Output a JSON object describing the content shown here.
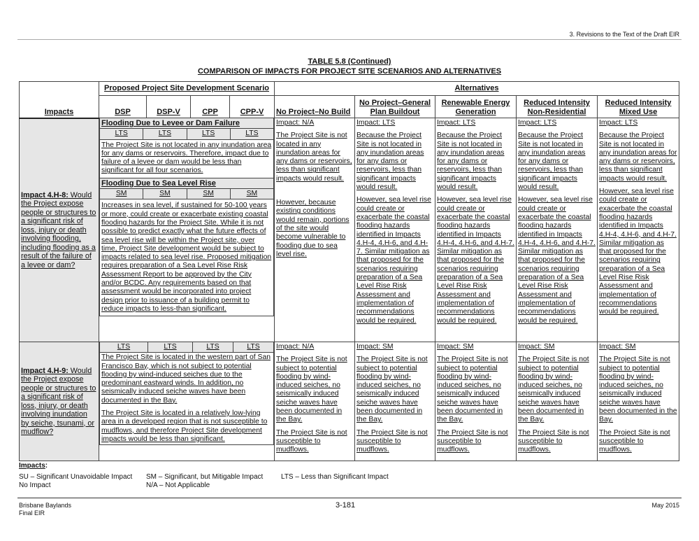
{
  "header": {
    "section": "3. Revisions to the Text of the Draft EIR"
  },
  "title": {
    "line1": "TABLE 5.8 (Continued)",
    "line2": "COMPARISON OF IMPACTS FOR PROJECT SITE SCENARIOS AND ALTERNATIVES"
  },
  "columns": {
    "impacts": "Impacts",
    "proposed_group": "Proposed Project Site Development Scenario",
    "alternatives_group": "Alternatives",
    "scenarios": [
      "DSP",
      "DSP-V",
      "CPP",
      "CPP-V"
    ],
    "alternatives": [
      "No Project–No Build",
      "No Project–General Plan Buildout",
      "Renewable Energy Generation",
      "Reduced Intensity Non-Residential",
      "Reduced Intensity Mixed Use"
    ]
  },
  "rows": [
    {
      "impact_id": "Impact 4.H-8:",
      "impact_text": " Would the Project expose people or structures to a significant risk of loss, injury or death involving flooding, including flooding as a result of the failure of a levee or dam?",
      "subsections": [
        {
          "heading": "Flooding Due to Levee or Dam Failure",
          "ratings": [
            "LTS",
            "LTS",
            "LTS",
            "LTS"
          ],
          "text": "The Project Site is not located in any inundation area for any dams or reservoirs. Therefore, impact due to failure of a levee or dam would be less than significant for all four scenarios."
        },
        {
          "heading": "Flooding Due to Sea Level Rise",
          "ratings": [
            "SM",
            "SM",
            "SM",
            "SM"
          ],
          "text": "Increases in sea level, if sustained for 50-100 years or more, could create or exacerbate existing coastal flooding hazards for the Project Site. While it is not possible to predict exactly what the future effects of sea level rise will be within the Project site, over time, Project Site development would be subject to impacts related to sea level rise. Proposed mitigation requires preparation of a Sea Level Rise Risk Assessment Report to be approved by the City and/or BCDC. Any requirements based on that assessment would be incorporated into project design prior to issuance of a building permit to reduce impacts to less-than significant."
        }
      ],
      "alternatives": [
        {
          "impact": "Impact: N/A",
          "paras": [
            "The Project Site is not located in any inundation areas for any dams or reservoirs, less than significant impacts would result.",
            "However, because existing conditions would remain, portions of the site would become vulnerable to flooding due to sea level rise."
          ]
        },
        {
          "impact": "Impact: LTS",
          "paras": [
            "Because the Project Site is not located in any inundation areas for any dams or reservoirs, less than significant impacts would result.",
            "However, sea level rise could create or exacerbate the coastal flooding hazards identified in Impacts 4.H-4, 4.H-6, and 4.H-7. Similar mitigation as that proposed for the scenarios requiring preparation of a Sea Level Rise Risk Assessment and implementation of recommendations would be required."
          ]
        },
        {
          "impact": "Impact: LTS",
          "paras": [
            "Because the Project Site is not located in any inundation areas for any dams or reservoirs, less than significant impacts would result.",
            "However, sea level rise could create or exacerbate the coastal flooding hazards identified in Impacts 4.H-4, 4.H-6, and 4.H-7. Similar mitigation as that proposed for the scenarios requiring preparation of a Sea Level Rise Risk Assessment and implementation of recommendations would be required."
          ]
        },
        {
          "impact": "Impact: LTS",
          "paras": [
            "Because the Project Site is not located in any inundation areas for any dams or reservoirs, less than significant impacts would result.",
            "However, sea level rise could create or exacerbate the coastal flooding hazards identified in Impacts 4.H-4, 4.H-6, and 4.H-7. Similar mitigation as that proposed for the scenarios requiring preparation of a Sea Level Rise Risk Assessment and implementation of recommendations would be required."
          ]
        },
        {
          "impact": "Impact: LTS",
          "paras": [
            "Because the Project Site is not located in any inundation areas for any dams or reservoirs, less than significant impacts would result.",
            "However, sea level rise could create or exacerbate the coastal flooding hazards identified in Impacts 4.H-4, 4.H-6, and 4.H-7. Similar mitigation as that proposed for the scenarios requiring preparation of a Sea Level Rise Risk Assessment and implementation of recommendations would be required."
          ]
        }
      ]
    },
    {
      "impact_id": "Impact 4.H-9:",
      "impact_text": " Would the Project expose people or structures to a significant risk of loss, injury, or death involving inundation by seiche, tsunami, or mudflow?",
      "ratings": [
        "LTS",
        "LTS",
        "LTS",
        "LTS"
      ],
      "paras": [
        "The Project Site is located in the western part of San Francisco Bay, which is not subject to potential flooding by wind-induced seiches due to the predominant eastward winds. In addition, no seismically induced seiche waves have been documented in the Bay.",
        "The Project Site is located in a relatively low-lying area in a developed region that is not susceptible to mudflows, and therefore Project Site development impacts would be less than significant."
      ],
      "alternatives": [
        {
          "impact": "Impact: N/A",
          "paras": [
            "The Project Site is not subject to potential flooding by wind-induced seiches, no seismically induced seiche waves have been documented in the Bay.",
            "The Project Site is not susceptible to mudflows."
          ]
        },
        {
          "impact": "Impact: SM",
          "paras": [
            "The Project Site is not subject to potential flooding by wind-induced seiches, no seismically induced seiche waves have been documented in the Bay.",
            "The Project Site is not susceptible to mudflows."
          ]
        },
        {
          "impact": "Impact: SM",
          "paras": [
            "The Project Site is not subject to potential flooding by wind-induced seiches, no seismically induced seiche waves have been documented in the Bay.",
            "The Project Site is not susceptible to mudflows."
          ]
        },
        {
          "impact": "Impact: SM",
          "paras": [
            "The Project Site is not subject to potential flooding by wind-induced seiches, no seismically induced seiche waves have been documented in the Bay.",
            "The Project Site is not susceptible to mudflows."
          ]
        },
        {
          "impact": "Impact: SM",
          "paras": [
            "The Project Site is not subject to potential flooding by wind-induced seiches, no seismically induced seiche waves have been documented in the Bay.",
            "The Project Site is not susceptible to mudflows."
          ]
        }
      ]
    }
  ],
  "legend": {
    "heading": "Impacts",
    "colon": ":",
    "su": "SU – Significant Unavoidable Impact",
    "sm": "SM – Significant, but Mitigable Impact",
    "lts": "LTS – Less than Significant Impact",
    "ni": "No Impact",
    "na": "N/A – Not Applicable"
  },
  "footer": {
    "project": "Brisbane Baylands",
    "doc": "Final EIR",
    "page": "3-181",
    "date": "May 2015"
  }
}
